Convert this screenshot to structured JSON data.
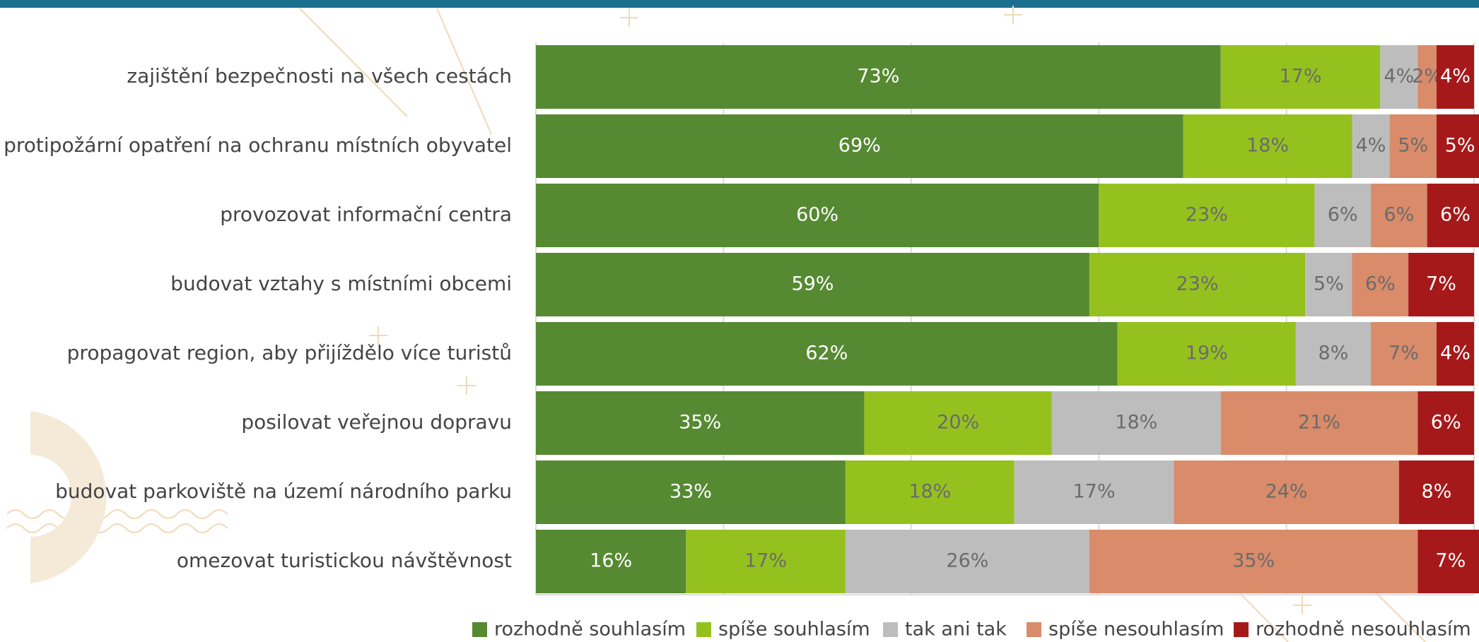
{
  "chart_data": {
    "type": "stacked-bar-horizontal",
    "categories": [
      "zajištění bezpečnosti na všech cestách",
      "protipožární opatření na ochranu místních obyvatel",
      "provozovat informační centra",
      "budovat vztahy s místními obcemi",
      "propagovat region, aby přijíždělo více turistů",
      "posilovat veřejnou dopravu",
      "budovat parkoviště na území národního parku",
      "omezovat turistickou návštěvnost"
    ],
    "series": [
      {
        "name": "rozhodně souhlasím",
        "color": "#568a32",
        "values": [
          73,
          69,
          60,
          59,
          62,
          35,
          33,
          16
        ],
        "value_labels": [
          "73%",
          "69%",
          "60%",
          "59%",
          "62%",
          "35%",
          "33%",
          "16%"
        ]
      },
      {
        "name": "spíše souhlasím",
        "color": "#95c11f",
        "values": [
          17,
          18,
          23,
          23,
          19,
          20,
          18,
          17
        ],
        "value_labels": [
          "17%",
          "18%",
          "23%",
          "23%",
          "19%",
          "20%",
          "18%",
          "17%"
        ]
      },
      {
        "name": "tak ani tak",
        "color": "#bdbdbd",
        "values": [
          4,
          4,
          6,
          5,
          8,
          18,
          17,
          26
        ],
        "value_labels": [
          "4%",
          "4%",
          "6%",
          "5%",
          "8%",
          "18%",
          "17%",
          "26%"
        ]
      },
      {
        "name": "spíše nesouhlasím",
        "color": "#d98b6a",
        "values": [
          2,
          5,
          6,
          6,
          7,
          21,
          24,
          35
        ],
        "value_labels": [
          "2%",
          "5%",
          "6%",
          "6%",
          "7%",
          "21%",
          "24%",
          "35%"
        ]
      },
      {
        "name": "rozhodně nesouhlasím",
        "color": "#a6191a",
        "values": [
          4,
          5,
          6,
          7,
          4,
          6,
          8,
          7
        ],
        "value_labels": [
          "4%",
          "5%",
          "6%",
          "7%",
          "4%",
          "6%",
          "8%",
          "7%"
        ]
      }
    ],
    "xlim": [
      0,
      100
    ],
    "xticks": [
      0,
      20,
      40,
      60,
      80,
      100
    ],
    "grid": true
  }
}
